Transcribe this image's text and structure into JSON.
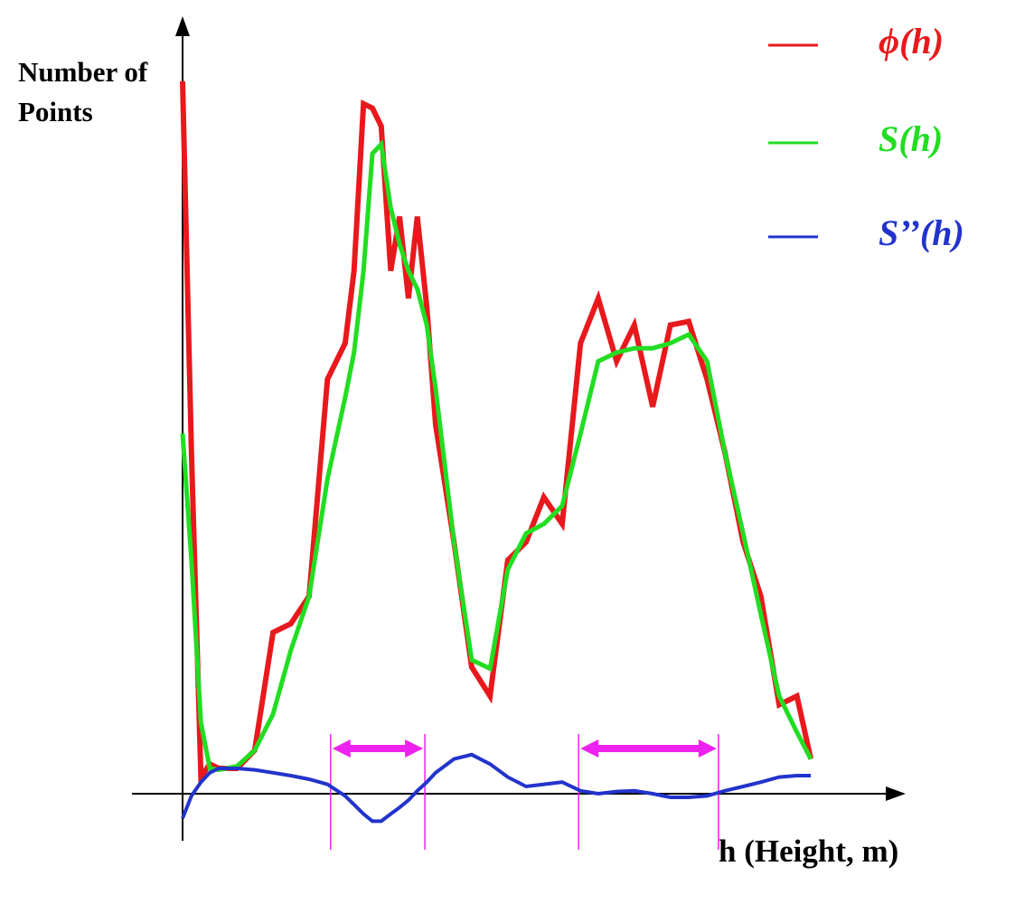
{
  "chart_data": {
    "type": "line",
    "y_label": "Number of Points",
    "x_label": "h (Height, m)",
    "x": [
      0,
      1.4,
      2.9,
      4.3,
      5.7,
      8.6,
      11.4,
      14.3,
      17.1,
      20,
      22.9,
      25.7,
      27.1,
      28.6,
      30,
      31.4,
      32.9,
      34.3,
      35.7,
      37.1,
      38.6,
      40,
      42.9,
      45.7,
      48.6,
      51.4,
      54.3,
      57.1,
      60,
      62.9,
      65.7,
      68.6,
      71.4,
      74.3,
      77.1,
      80,
      82.9,
      85.7,
      88.6,
      91.4,
      94.3,
      97.1,
      99.3
    ],
    "series": [
      {
        "name": "ϕ(h)",
        "color": "#e8191c",
        "values": [
          98.5,
          47.3,
          2.3,
          4.1,
          3.5,
          3.5,
          6,
          22.3,
          23.5,
          27.3,
          57.3,
          62.3,
          72.3,
          95.4,
          94.8,
          92.3,
          72.3,
          79.8,
          68.5,
          79.8,
          67.3,
          51,
          34.8,
          17.5,
          13.5,
          32.3,
          34.8,
          41,
          37.3,
          62.3,
          68.5,
          59.8,
          64.8,
          53.5,
          64.8,
          65.3,
          57.3,
          47.3,
          34.8,
          27.3,
          12.3,
          13.5,
          4.8
        ]
      },
      {
        "name": "S(h)",
        "color": "#22dd22",
        "values": [
          49.8,
          32.3,
          9.8,
          3.5,
          3.3,
          3.8,
          6,
          11,
          19.8,
          27.3,
          43.5,
          54.8,
          61,
          72.3,
          88.5,
          89.8,
          81,
          76,
          72.3,
          69.8,
          64.8,
          56,
          34.8,
          18.5,
          17.3,
          31,
          36,
          37.3,
          39.8,
          49.8,
          59.8,
          61,
          61.6,
          61.6,
          62.3,
          63.5,
          59.8,
          47.3,
          36,
          24.8,
          13.5,
          8.5,
          4.8
        ]
      },
      {
        "name": "S’’(h)",
        "color": "#2233cc",
        "values": [
          -3.4,
          -0.3,
          1.6,
          2.9,
          3.5,
          3.5,
          3.3,
          2.9,
          2.5,
          2,
          1.3,
          -0.3,
          -1.5,
          -2.8,
          -3.8,
          -3.8,
          -2.8,
          -1.9,
          -0.9,
          0.4,
          1.6,
          2.9,
          4.8,
          5.4,
          4.1,
          2.3,
          1,
          1.3,
          1.6,
          0.4,
          0,
          0.3,
          0.4,
          0,
          -0.5,
          -0.5,
          -0.3,
          0.4,
          1,
          1.6,
          2.3,
          2.5,
          2.5
        ]
      }
    ],
    "intervals": [
      [
        23.4,
        38.3
      ],
      [
        62.6,
        84.7
      ]
    ],
    "interval_color": "#ee22ee",
    "xlim": [
      -8,
      114
    ],
    "ylim": [
      -6.5,
      107
    ],
    "legend": "top-right"
  }
}
